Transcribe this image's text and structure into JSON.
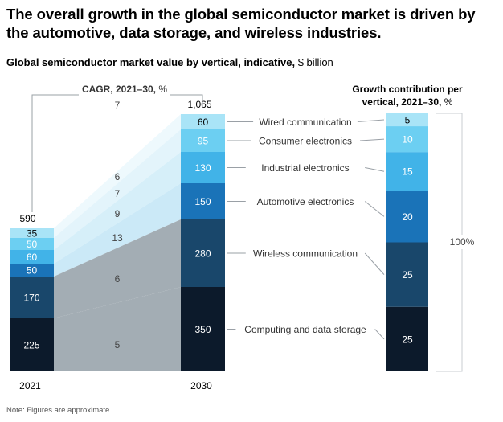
{
  "header": {
    "title": "The overall growth in the global semiconductor market is driven by the automotive, data storage, and wireless industries.",
    "subtitle_bold": "Global semiconductor market value by vertical, indicative,",
    "subtitle_unit": "$ billion"
  },
  "note": "Note: Figures are approximate.",
  "colors": {
    "computing": "#0c1a2b",
    "wireless": "#19476b",
    "automotive": "#1a73b8",
    "industrial": "#41b3e8",
    "consumer": "#6ccff2",
    "wired": "#a9e4f7",
    "band_gray": "#a3adb4",
    "guide": "#9aa0a6"
  },
  "chart_data": [
    {
      "type": "bar",
      "stacked": true,
      "categories": [
        "2021",
        "2030"
      ],
      "segments_order": "bottom-to-top",
      "series": [
        {
          "name": "Computing and data storage",
          "values": [
            225,
            350
          ],
          "cagr": "5"
        },
        {
          "name": "Wireless communication",
          "values": [
            170,
            280
          ],
          "cagr": "6"
        },
        {
          "name": "Automotive electronics",
          "values": [
            50,
            150
          ],
          "cagr": "13"
        },
        {
          "name": "Industrial electronics",
          "values": [
            60,
            130
          ],
          "cagr": "9"
        },
        {
          "name": "Consumer electronics",
          "values": [
            50,
            95
          ],
          "cagr": "7"
        },
        {
          "name": "Wired communication",
          "values": [
            35,
            60
          ],
          "cagr": "6"
        }
      ],
      "totals": [
        "590",
        "1,065"
      ],
      "total_cagr": "7",
      "cagr_label": "CAGR, 2021–30,",
      "cagr_unit": "%"
    },
    {
      "type": "bar",
      "stacked": true,
      "title": "Growth contribution per vertical, 2021–30,",
      "title_unit": "%",
      "segments": [
        {
          "name": "Computing and data storage",
          "value": 25
        },
        {
          "name": "Wireless communication",
          "value": 25
        },
        {
          "name": "Automotive electronics",
          "value": 20
        },
        {
          "name": "Industrial electronics",
          "value": 15
        },
        {
          "name": "Consumer electronics",
          "value": 10
        },
        {
          "name": "Wired communication",
          "value": 5
        }
      ],
      "total_label": "100%"
    }
  ]
}
